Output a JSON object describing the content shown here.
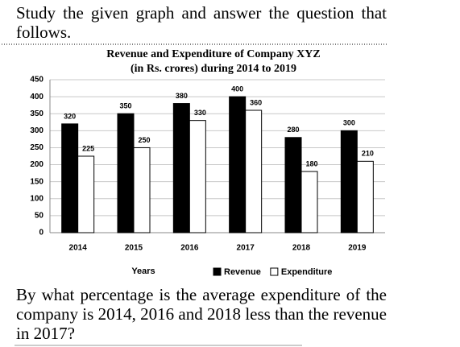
{
  "header": {
    "text": "Study the given graph and answer the question that follows."
  },
  "chart_data": {
    "type": "bar",
    "title": "Revenue and Expenditure of Company XYZ",
    "subtitle": "(in Rs. crores) during 2014 to 2019",
    "x_label": "Years",
    "categories": [
      "2014",
      "2015",
      "2016",
      "2017",
      "2018",
      "2019"
    ],
    "series": [
      {
        "name": "Revenue",
        "color": "#000000",
        "values": [
          320,
          350,
          380,
          400,
          280,
          300
        ]
      },
      {
        "name": "Expenditure",
        "color": "#ffffff",
        "values": [
          225,
          250,
          330,
          360,
          180,
          210
        ]
      }
    ],
    "ylim": [
      0,
      450
    ],
    "yticks": [
      0,
      50,
      100,
      150,
      200,
      250,
      300,
      350,
      400,
      450
    ],
    "grid": true,
    "legend": "bottom"
  },
  "question": {
    "text": "By what percentage is the average expenditure of the company is 2014, 2016 and 2018 less than the revenue in 2017?"
  }
}
